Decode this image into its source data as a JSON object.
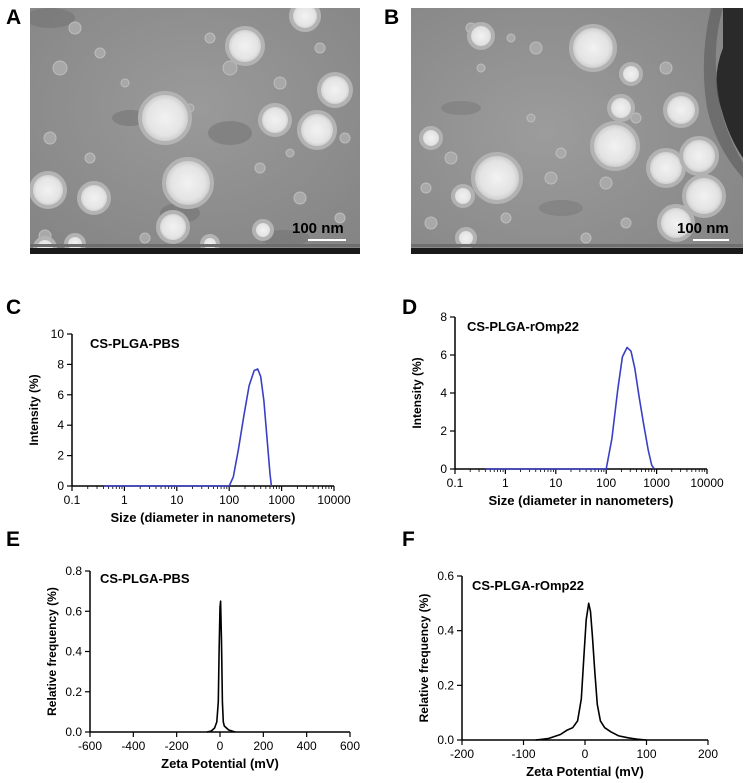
{
  "panel_letters": [
    "A",
    "B",
    "C",
    "D",
    "E",
    "F"
  ],
  "micrographs": [
    {
      "scale_bar_label": "100 nm",
      "background": "#8e8e8e"
    },
    {
      "scale_bar_label": "100 nm",
      "background": "#8f8f8f"
    }
  ],
  "colors": {
    "dls_line": "#3a3fc4",
    "zeta_line": "#000000",
    "axis": "#000000"
  },
  "chart_data": [
    {
      "type": "line",
      "panel": "C",
      "title": "CS-PLGA-PBS",
      "xlabel": "Size (diameter in nanometers)",
      "ylabel": "Intensity (%)",
      "x_scale": "log",
      "xlim": [
        0.1,
        10000
      ],
      "ylim": [
        0,
        10
      ],
      "x_ticks": [
        0.1,
        1,
        10,
        100,
        1000,
        10000
      ],
      "x_tick_labels": [
        "0.1",
        "1",
        "10",
        "100",
        "1000",
        "10000"
      ],
      "y_ticks": [
        0,
        2,
        4,
        6,
        8,
        10
      ],
      "y_tick_labels": [
        "0",
        "2",
        "4",
        "6",
        "8",
        "10"
      ],
      "grid": false,
      "series": [
        {
          "x": [
            0.4,
            1,
            10,
            60,
            100,
            120,
            150,
            190,
            240,
            300,
            350,
            400,
            460,
            530,
            600,
            640
          ],
          "y": [
            0,
            0,
            0,
            0,
            0,
            0.6,
            2.4,
            4.6,
            6.6,
            7.6,
            7.7,
            7.2,
            5.6,
            3.0,
            0.8,
            0
          ]
        }
      ]
    },
    {
      "type": "line",
      "panel": "D",
      "title": "CS-PLGA-rOmp22",
      "xlabel": "Size (diameter in nanometers)",
      "ylabel": "Intensity (%)",
      "x_scale": "log",
      "xlim": [
        0.1,
        10000
      ],
      "ylim": [
        0,
        8
      ],
      "x_ticks": [
        0.1,
        1,
        10,
        100,
        1000,
        10000
      ],
      "x_tick_labels": [
        "0.1",
        "1",
        "10",
        "100",
        "1000",
        "10000"
      ],
      "y_ticks": [
        0,
        2,
        4,
        6,
        8
      ],
      "y_tick_labels": [
        "0",
        "2",
        "4",
        "6",
        "8"
      ],
      "grid": false,
      "series": [
        {
          "x": [
            0.4,
            1,
            10,
            60,
            100,
            130,
            170,
            210,
            260,
            310,
            370,
            450,
            550,
            680,
            800,
            900
          ],
          "y": [
            0,
            0,
            0,
            0,
            0,
            1.6,
            4.2,
            5.9,
            6.4,
            6.2,
            5.3,
            3.8,
            2.4,
            1.0,
            0.2,
            0
          ]
        }
      ]
    },
    {
      "type": "line",
      "panel": "E",
      "title": "CS-PLGA-PBS",
      "xlabel": "Zeta Potential (mV)",
      "ylabel": "Relative frequency (%)",
      "xlim": [
        -600,
        600
      ],
      "ylim": [
        0,
        0.8
      ],
      "x_ticks": [
        -600,
        -400,
        -200,
        0,
        200,
        400,
        600
      ],
      "x_tick_labels": [
        "-600",
        "-400",
        "-200",
        "0",
        "200",
        "400",
        "600"
      ],
      "y_ticks": [
        0,
        0.2,
        0.4,
        0.6,
        0.8
      ],
      "y_tick_labels": [
        "0.0",
        "0.2",
        "0.4",
        "0.6",
        "0.8"
      ],
      "grid": false,
      "series": [
        {
          "x": [
            -60,
            -40,
            -25,
            -15,
            -8,
            -4,
            0,
            3,
            7,
            11,
            15,
            20,
            30,
            40,
            55,
            70
          ],
          "y": [
            0,
            0.005,
            0.02,
            0.05,
            0.15,
            0.4,
            0.62,
            0.65,
            0.45,
            0.15,
            0.05,
            0.03,
            0.02,
            0.01,
            0.005,
            0
          ]
        }
      ]
    },
    {
      "type": "line",
      "panel": "F",
      "title": "CS-PLGA-rOmp22",
      "xlabel": "Zeta Potential (mV)",
      "ylabel": "Relative frequency (%)",
      "xlim": [
        -200,
        200
      ],
      "ylim": [
        0,
        0.6
      ],
      "x_ticks": [
        -200,
        -100,
        0,
        100,
        200
      ],
      "x_tick_labels": [
        "-200",
        "-100",
        "0",
        "100",
        "200"
      ],
      "y_ticks": [
        0,
        0.2,
        0.4,
        0.6
      ],
      "y_tick_labels": [
        "0.0",
        "0.2",
        "0.4",
        "0.6"
      ],
      "grid": false,
      "series": [
        {
          "x": [
            -80,
            -60,
            -40,
            -30,
            -20,
            -12,
            -6,
            -2,
            2,
            6,
            9,
            12,
            16,
            20,
            25,
            32,
            42,
            55,
            70,
            85,
            100
          ],
          "y": [
            0,
            0.005,
            0.02,
            0.035,
            0.045,
            0.07,
            0.15,
            0.3,
            0.44,
            0.5,
            0.47,
            0.38,
            0.25,
            0.13,
            0.07,
            0.045,
            0.03,
            0.015,
            0.008,
            0.003,
            0
          ]
        }
      ]
    }
  ]
}
